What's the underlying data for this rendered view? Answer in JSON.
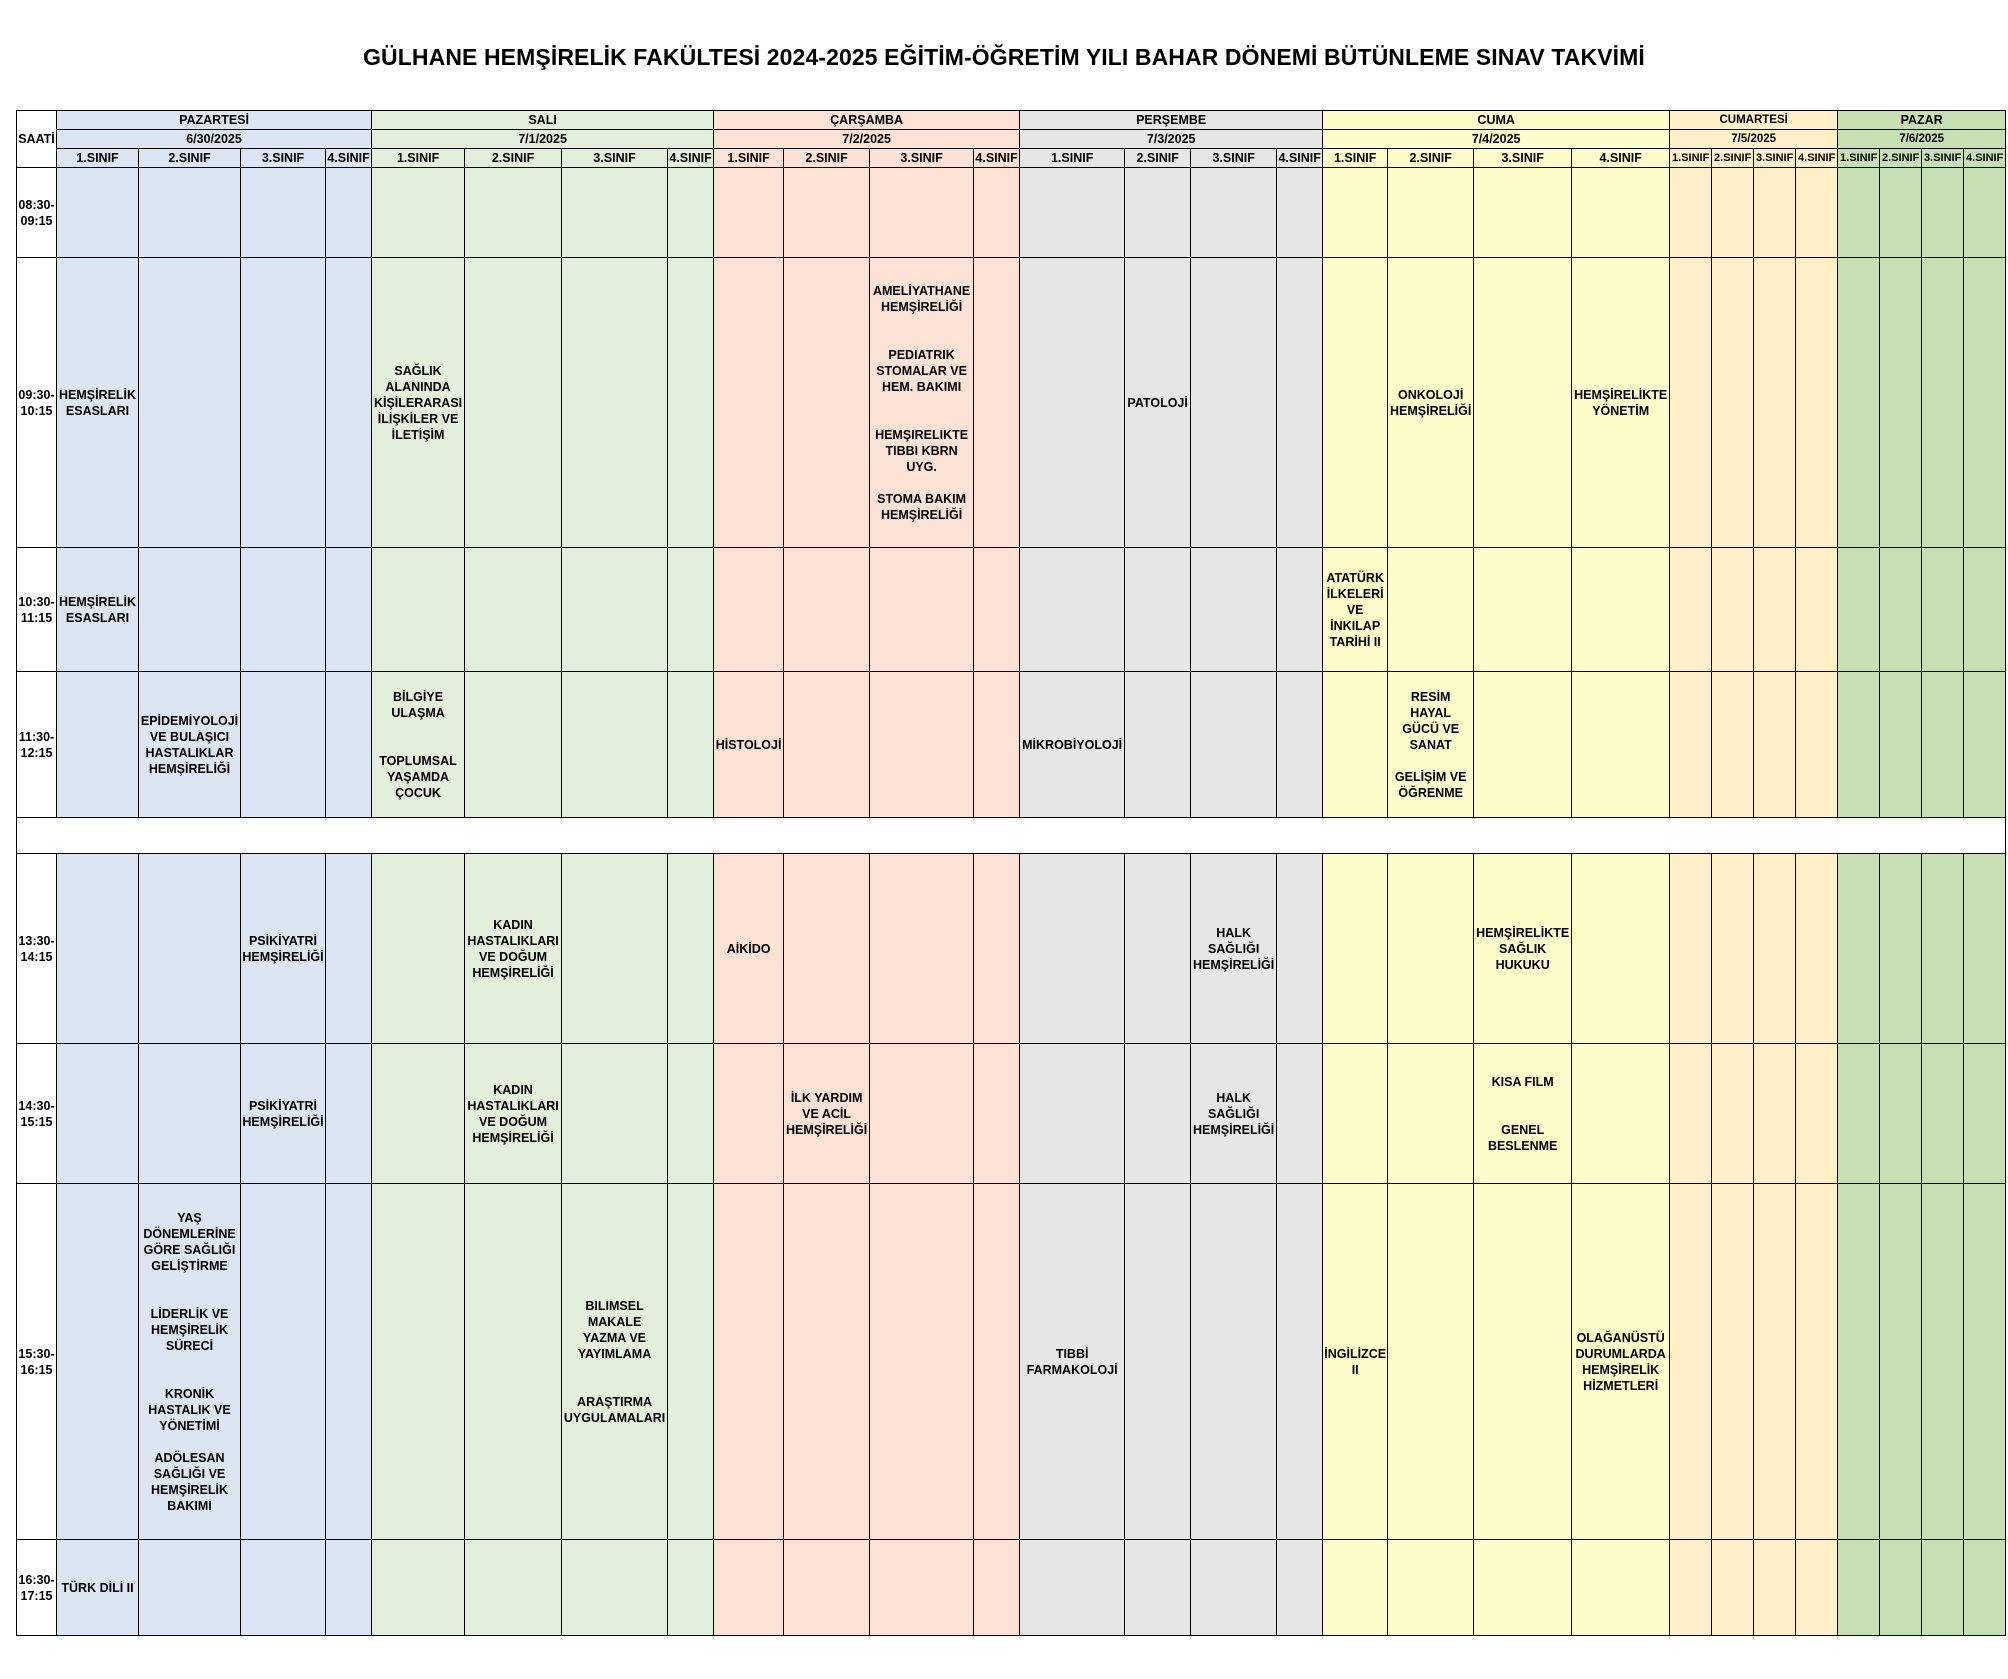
{
  "title": "GÜLHANE HEMŞİRELİK FAKÜLTESİ 2024-2025 EĞİTİM-ÖĞRETİM YILI BAHAR DÖNEMİ BÜTÜNLEME SINAV TAKVİMİ",
  "saati_label": "SAATİ",
  "colors": {
    "pazartesi": "#dce6f2",
    "sali": "#e2efda",
    "carsamba": "#fbe2d5",
    "persembe": "#e6e6e6",
    "cuma": "#fefcc8",
    "cumartesi": "#fff0c8",
    "pazar": "#c6e0b4"
  },
  "days": [
    {
      "key": "pazartesi",
      "name": "PAZARTESİ",
      "date": "6/30/2025",
      "classes": [
        "1.SINIF",
        "2.SINIF",
        "3.SINIF",
        "4.SINIF"
      ]
    },
    {
      "key": "sali",
      "name": "SALI",
      "date": "7/1/2025",
      "classes": [
        "1.SINIF",
        "2.SINIF",
        "3.SINIF",
        "4.SINIF"
      ]
    },
    {
      "key": "carsamba",
      "name": "ÇARŞAMBA",
      "date": "7/2/2025",
      "classes": [
        "1.SINIF",
        "2.SINIF",
        "3.SINIF",
        "4.SINIF"
      ]
    },
    {
      "key": "persembe",
      "name": "PERŞEMBE",
      "date": "7/3/2025",
      "classes": [
        "1.SINIF",
        "2.SINIF",
        "3.SINIF",
        "4.SINIF"
      ]
    },
    {
      "key": "cuma",
      "name": "CUMA",
      "date": "7/4/2025",
      "classes": [
        "1.SINIF",
        "2.SINIF",
        "3.SINIF",
        "4.SINIF"
      ]
    },
    {
      "key": "cumartesi",
      "name": "CUMARTESİ",
      "date": "7/5/2025",
      "classes": [
        "1.SINIF",
        "2.SINIF",
        "3.SINIF",
        "4.SINIF"
      ]
    },
    {
      "key": "pazar",
      "name": "PAZAR",
      "date": "7/6/2025",
      "classes": [
        "1.SINIF",
        "2.SINIF",
        "3.SINIF",
        "4.SINIF"
      ]
    }
  ],
  "rows": [
    {
      "time": "08:30-\n09:15",
      "cells": [
        [
          "",
          "",
          "",
          ""
        ],
        [
          "",
          "",
          "",
          ""
        ],
        [
          "",
          "",
          "",
          ""
        ],
        [
          "",
          "",
          "",
          ""
        ],
        [
          "",
          "",
          "",
          ""
        ],
        [
          "",
          "",
          "",
          ""
        ],
        [
          "",
          "",
          "",
          ""
        ]
      ]
    },
    {
      "time": "09:30-\n10:15",
      "cells": [
        [
          "HEMŞİRELİK\nESASLARI",
          "",
          "",
          ""
        ],
        [
          "SAĞLIK\nALANINDA\nKİŞİLERARASI\nİLİŞKİLER VE\nİLETİŞİM",
          "",
          "",
          ""
        ],
        [
          "",
          "",
          "AMELİYATHANE\nHEMŞİRELİĞİ\n\n\nPEDIATRIK\nSTOMALAR VE\nHEM. BAKIMI\n\n\nHEMŞIRELIKTE\nTIBBI KBRN\nUYG.\n\nSTOMA BAKIM\nHEMŞİRELİĞİ",
          ""
        ],
        [
          "",
          "PATOLOJİ",
          "",
          ""
        ],
        [
          "",
          "ONKOLOJİ\nHEMŞİRELİĞİ",
          "",
          "HEMŞİRELİKTE\nYÖNETİM"
        ],
        [
          "",
          "",
          "",
          ""
        ],
        [
          "",
          "",
          "",
          ""
        ]
      ]
    },
    {
      "time": "10:30-\n11:15",
      "cells": [
        [
          "HEMŞİRELİK\nESASLARI",
          "",
          "",
          ""
        ],
        [
          "",
          "",
          "",
          ""
        ],
        [
          "",
          "",
          "",
          ""
        ],
        [
          "",
          "",
          "",
          ""
        ],
        [
          "ATATÜRK\nİLKELERİ\nVE\nİNKILAP\nTARİHİ II",
          "",
          "",
          ""
        ],
        [
          "",
          "",
          "",
          ""
        ],
        [
          "",
          "",
          "",
          ""
        ]
      ]
    },
    {
      "time": "11:30-\n12:15",
      "cells": [
        [
          "",
          "EPİDEMİYOLOJİ\nVE BULAŞICI\nHASTALIKLAR\nHEMŞİRELİĞİ",
          "",
          ""
        ],
        [
          "BİLGİYE\nULAŞMA\n\n\nTOPLUMSAL\nYAŞAMDA\nÇOCUK",
          "",
          "",
          ""
        ],
        [
          "HİSTOLOJİ",
          "",
          "",
          ""
        ],
        [
          "MİKROBİYOLOJİ",
          "",
          "",
          ""
        ],
        [
          "",
          "RESİM\nHAYAL\nGÜCÜ VE\nSANAT\n\nGELİŞİM VE\nÖĞRENME",
          "",
          ""
        ],
        [
          "",
          "",
          "",
          ""
        ],
        [
          "",
          "",
          "",
          ""
        ]
      ]
    },
    {
      "time": "13:30-\n14:15",
      "cells": [
        [
          "",
          "",
          "PSİKİYATRİ\nHEMŞİRELİĞİ",
          ""
        ],
        [
          "",
          "KADIN\nHASTALIKLARI\nVE DOĞUM\nHEMŞİRELİĞİ",
          "",
          ""
        ],
        [
          "AİKİDO",
          "",
          "",
          ""
        ],
        [
          "",
          "",
          "HALK\nSAĞLIĞI\nHEMŞİRELİĞİ",
          ""
        ],
        [
          "",
          "",
          "HEMŞİRELİKTE\nSAĞLIK\nHUKUKU",
          ""
        ],
        [
          "",
          "",
          "",
          ""
        ],
        [
          "",
          "",
          "",
          ""
        ]
      ]
    },
    {
      "time": "14:30-\n15:15",
      "cells": [
        [
          "",
          "",
          "PSİKİYATRİ\nHEMŞİRELİĞİ",
          ""
        ],
        [
          "",
          "KADIN\nHASTALIKLARI\nVE DOĞUM\nHEMŞİRELİĞİ",
          "",
          ""
        ],
        [
          "",
          "İLK YARDIM\nVE ACİL\nHEMŞİRELİĞİ",
          "",
          ""
        ],
        [
          "",
          "",
          "HALK\nSAĞLIĞI\nHEMŞİRELİĞİ",
          ""
        ],
        [
          "",
          "",
          "KISA FILM\n\n\nGENEL\nBESLENME",
          ""
        ],
        [
          "",
          "",
          "",
          ""
        ],
        [
          "",
          "",
          "",
          ""
        ]
      ]
    },
    {
      "time": "15:30-\n16:15",
      "cells": [
        [
          "",
          "YAŞ\nDÖNEMLERİNE\nGÖRE SAĞLIĞI\nGELİŞTİRME\n\n\nLİDERLİK VE\nHEMŞİRELİK\nSÜRECİ\n\n\nKRONİK\nHASTALIK VE\nYÖNETİMİ\n\nADÖLESAN\nSAĞLIĞI VE\nHEMŞİRELİK\nBAKIMI",
          "",
          ""
        ],
        [
          "",
          "",
          "BILIMSEL\nMAKALE\nYAZMA VE\nYAYIMLAMA\n\n\nARAŞTIRMA\nUYGULAMALARI",
          ""
        ],
        [
          "",
          "",
          "",
          ""
        ],
        [
          "TIBBİ\nFARMAKOLOJİ",
          "",
          "",
          ""
        ],
        [
          "İNGİLİZCE\nII",
          "",
          "",
          "OLAĞANÜSTÜ\nDURUMLARDA\nHEMŞİRELİK\nHİZMETLERİ"
        ],
        [
          "",
          "",
          "",
          ""
        ],
        [
          "",
          "",
          "",
          ""
        ]
      ]
    },
    {
      "time": "16:30-\n17:15",
      "cells": [
        [
          "TÜRK DİLİ II",
          "",
          "",
          ""
        ],
        [
          "",
          "",
          "",
          ""
        ],
        [
          "",
          "",
          "",
          ""
        ],
        [
          "",
          "",
          "",
          ""
        ],
        [
          "",
          "",
          "",
          ""
        ],
        [
          "",
          "",
          "",
          ""
        ],
        [
          "",
          "",
          "",
          ""
        ]
      ]
    }
  ]
}
